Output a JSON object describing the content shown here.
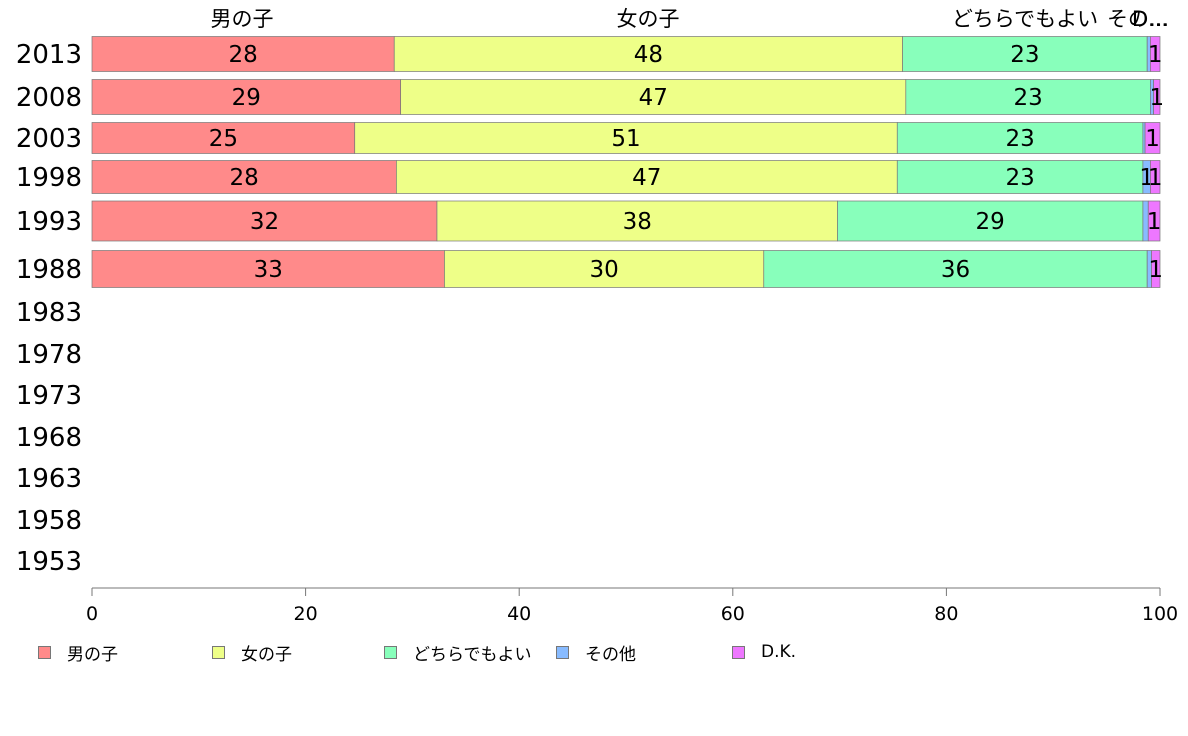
{
  "chart_data": {
    "type": "bar",
    "orientation": "horizontal",
    "stacked": true,
    "categories": [
      "2013",
      "2008",
      "2003",
      "1998",
      "1993",
      "1988",
      "1983",
      "1978",
      "1973",
      "1968",
      "1963",
      "1958",
      "1953"
    ],
    "series": [
      {
        "name": "男の子",
        "color": "#ff8a8a",
        "values": [
          28.3,
          28.9,
          24.6,
          28.5,
          32.3,
          33.0,
          null,
          null,
          null,
          null,
          null,
          null,
          null
        ],
        "labels": [
          "28",
          "29",
          "25",
          "28",
          "32",
          "33"
        ]
      },
      {
        "name": "女の子",
        "color": "#eeff88",
        "values": [
          47.6,
          47.3,
          50.8,
          46.9,
          37.5,
          29.9,
          null,
          null,
          null,
          null,
          null,
          null,
          null
        ],
        "labels": [
          "48",
          "47",
          "51",
          "47",
          "38",
          "30"
        ]
      },
      {
        "name": "どちらでもよい",
        "color": "#88ffbb",
        "values": [
          22.9,
          22.9,
          23.0,
          23.0,
          28.6,
          35.9,
          null,
          null,
          null,
          null,
          null,
          null,
          null
        ],
        "labels": [
          "23",
          "23",
          "23",
          "23",
          "29",
          "36"
        ]
      },
      {
        "name": "その他",
        "color": "#88bbff",
        "values": [
          0.3,
          0.3,
          0.2,
          0.7,
          0.5,
          0.4,
          null,
          null,
          null,
          null,
          null,
          null,
          null
        ],
        "labels": [
          "",
          "",
          "",
          "1",
          "",
          ""
        ]
      },
      {
        "name": "D.K.",
        "color": "#ee77ff",
        "values": [
          0.9,
          0.6,
          1.4,
          0.9,
          1.1,
          0.8,
          null,
          null,
          null,
          null,
          null,
          null,
          null
        ],
        "labels": [
          "1",
          "1",
          "1",
          "1",
          "1",
          "1"
        ]
      }
    ],
    "series_headers": [
      "男の子",
      "女の子",
      "どちらでもよい",
      "その...",
      "D..."
    ],
    "xticks": [
      "0",
      "20",
      "40",
      "60",
      "80",
      "100"
    ],
    "xlim": [
      0,
      100
    ],
    "grid": false,
    "legend_position": "bottom-left",
    "title": "",
    "xlabel": "",
    "ylabel": ""
  }
}
